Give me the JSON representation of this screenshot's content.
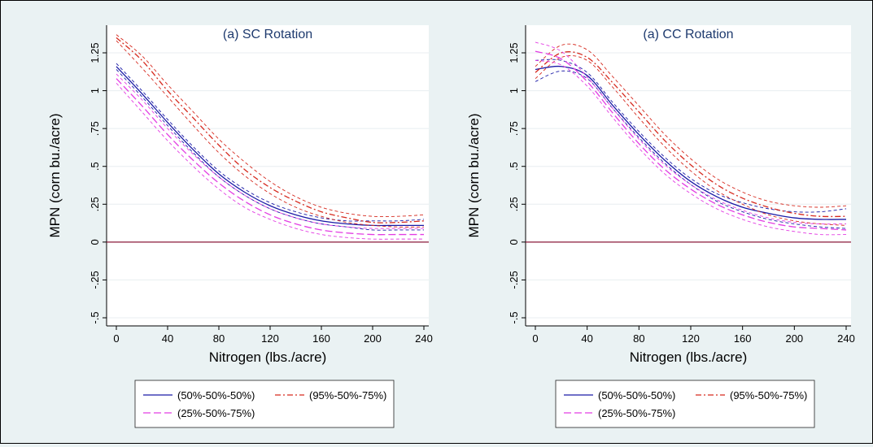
{
  "colors": {
    "background": "#eaf2f3",
    "plot_bg": "#ffffff",
    "grid": "#e8eef0",
    "zero_line": "#8b1a3a",
    "legend_border": "#222222"
  },
  "chart_data": [
    {
      "type": "line",
      "title": "(a) SC Rotation",
      "xlabel": "Nitrogen (lbs./acre)",
      "ylabel": "MPN (corn bu./acre)",
      "xlim": [
        0,
        240
      ],
      "ylim": [
        -0.5,
        1.25
      ],
      "xticks": [
        0,
        40,
        80,
        120,
        160,
        200,
        240
      ],
      "xtick_labels": [
        "0",
        "40",
        "80",
        "120",
        "160",
        "200",
        "240"
      ],
      "yticks": [
        -0.5,
        -0.25,
        0,
        0.25,
        0.5,
        0.75,
        1,
        1.25
      ],
      "ytick_labels": [
        "-.5",
        "-.25",
        "0",
        ".25",
        ".5",
        ".75",
        "1",
        "1.25"
      ],
      "grid": true,
      "reference_line": 0,
      "x": [
        0,
        20,
        40,
        60,
        80,
        100,
        120,
        140,
        160,
        180,
        200,
        220,
        240
      ],
      "series": [
        {
          "name": "(50%-50%-50%)",
          "color": "#1a1aa6",
          "dash": "solid",
          "values": [
            1.16,
            0.98,
            0.79,
            0.61,
            0.45,
            0.33,
            0.24,
            0.18,
            0.14,
            0.12,
            0.11,
            0.11,
            0.11
          ]
        },
        {
          "name": "",
          "color": "#1a1aa6",
          "dash": "dashed",
          "values": [
            1.14,
            0.96,
            0.77,
            0.59,
            0.43,
            0.31,
            0.22,
            0.16,
            0.12,
            0.1,
            0.08,
            0.08,
            0.08
          ]
        },
        {
          "name": "",
          "color": "#1a1aa6",
          "dash": "dashed",
          "values": [
            1.18,
            1.0,
            0.81,
            0.63,
            0.47,
            0.35,
            0.26,
            0.2,
            0.16,
            0.14,
            0.14,
            0.14,
            0.15
          ]
        },
        {
          "name": "(95%-50%-75%)",
          "color": "#d62a1f",
          "dash": "dashdot",
          "values": [
            1.35,
            1.2,
            1.0,
            0.82,
            0.64,
            0.48,
            0.36,
            0.27,
            0.2,
            0.16,
            0.13,
            0.13,
            0.14
          ]
        },
        {
          "name": "",
          "color": "#d62a1f",
          "dash": "dashed",
          "values": [
            1.33,
            1.15,
            0.96,
            0.77,
            0.59,
            0.44,
            0.32,
            0.23,
            0.17,
            0.13,
            0.11,
            0.1,
            0.1
          ]
        },
        {
          "name": "",
          "color": "#d62a1f",
          "dash": "dashed",
          "values": [
            1.37,
            1.23,
            1.04,
            0.86,
            0.68,
            0.53,
            0.4,
            0.3,
            0.23,
            0.19,
            0.17,
            0.17,
            0.18
          ]
        },
        {
          "name": "(25%-50%-75%)",
          "color": "#e33de3",
          "dash": "longdash",
          "values": [
            1.08,
            0.9,
            0.71,
            0.54,
            0.39,
            0.27,
            0.18,
            0.12,
            0.08,
            0.06,
            0.05,
            0.05,
            0.05
          ]
        },
        {
          "name": "",
          "color": "#e33de3",
          "dash": "dashed",
          "values": [
            1.05,
            0.86,
            0.67,
            0.5,
            0.35,
            0.23,
            0.15,
            0.09,
            0.05,
            0.03,
            0.02,
            0.02,
            0.02
          ]
        },
        {
          "name": "",
          "color": "#e33de3",
          "dash": "dashed",
          "values": [
            1.11,
            0.94,
            0.75,
            0.58,
            0.43,
            0.31,
            0.22,
            0.16,
            0.12,
            0.1,
            0.09,
            0.09,
            0.09
          ]
        }
      ],
      "legend": {
        "placement": "bottom",
        "entries": [
          {
            "label": "(50%-50%-50%)",
            "color": "#1a1aa6",
            "dash": "solid"
          },
          {
            "label": "(95%-50%-75%)",
            "color": "#d62a1f",
            "dash": "dashdot"
          },
          {
            "label": "(25%-50%-75%)",
            "color": "#e33de3",
            "dash": "longdash"
          }
        ]
      }
    },
    {
      "type": "line",
      "title": "(a) CC Rotation",
      "xlabel": "Nitrogen (lbs./acre)",
      "ylabel": "MPN (corn bu./acre)",
      "xlim": [
        0,
        240
      ],
      "ylim": [
        -0.5,
        1.25
      ],
      "xticks": [
        0,
        40,
        80,
        120,
        160,
        200,
        240
      ],
      "xtick_labels": [
        "0",
        "40",
        "80",
        "120",
        "160",
        "200",
        "240"
      ],
      "yticks": [
        -0.5,
        -0.25,
        0,
        0.25,
        0.5,
        0.75,
        1,
        1.25
      ],
      "ytick_labels": [
        "-.5",
        "-.25",
        "0",
        ".25",
        ".5",
        ".75",
        "1",
        "1.25"
      ],
      "grid": true,
      "reference_line": 0,
      "x": [
        0,
        20,
        40,
        60,
        80,
        100,
        120,
        140,
        160,
        180,
        200,
        220,
        240
      ],
      "series": [
        {
          "name": "(50%-50%-50%)",
          "color": "#1a1aa6",
          "dash": "solid",
          "values": [
            1.14,
            1.16,
            1.1,
            0.9,
            0.71,
            0.54,
            0.4,
            0.3,
            0.23,
            0.19,
            0.16,
            0.15,
            0.15
          ]
        },
        {
          "name": "",
          "color": "#1a1aa6",
          "dash": "dashed",
          "values": [
            1.06,
            1.13,
            1.08,
            0.88,
            0.69,
            0.52,
            0.38,
            0.27,
            0.2,
            0.15,
            0.12,
            0.1,
            0.09
          ]
        },
        {
          "name": "",
          "color": "#1a1aa6",
          "dash": "dashed",
          "values": [
            1.2,
            1.2,
            1.12,
            0.92,
            0.73,
            0.56,
            0.42,
            0.32,
            0.26,
            0.22,
            0.2,
            0.2,
            0.22
          ]
        },
        {
          "name": "(95%-50%-75%)",
          "color": "#d62a1f",
          "dash": "dashdot",
          "values": [
            1.12,
            1.25,
            1.22,
            1.05,
            0.86,
            0.67,
            0.51,
            0.38,
            0.29,
            0.23,
            0.19,
            0.17,
            0.17
          ]
        },
        {
          "name": "",
          "color": "#d62a1f",
          "dash": "dashed",
          "values": [
            1.08,
            1.22,
            1.2,
            1.02,
            0.82,
            0.63,
            0.47,
            0.34,
            0.25,
            0.18,
            0.14,
            0.12,
            0.11
          ]
        },
        {
          "name": "",
          "color": "#d62a1f",
          "dash": "dashed",
          "values": [
            1.16,
            1.3,
            1.27,
            1.09,
            0.9,
            0.71,
            0.55,
            0.42,
            0.33,
            0.27,
            0.24,
            0.23,
            0.24
          ]
        },
        {
          "name": "(25%-50%-75%)",
          "color": "#e33de3",
          "dash": "longdash",
          "values": [
            1.26,
            1.21,
            1.06,
            0.85,
            0.65,
            0.48,
            0.35,
            0.25,
            0.18,
            0.13,
            0.1,
            0.09,
            0.08
          ]
        },
        {
          "name": "",
          "color": "#e33de3",
          "dash": "dashed",
          "values": [
            1.2,
            1.17,
            1.03,
            0.82,
            0.62,
            0.45,
            0.32,
            0.22,
            0.15,
            0.1,
            0.07,
            0.05,
            0.05
          ]
        },
        {
          "name": "",
          "color": "#e33de3",
          "dash": "dashed",
          "values": [
            1.32,
            1.26,
            1.09,
            0.88,
            0.68,
            0.51,
            0.38,
            0.28,
            0.21,
            0.16,
            0.13,
            0.12,
            0.12
          ]
        }
      ],
      "legend": {
        "placement": "bottom",
        "entries": [
          {
            "label": "(50%-50%-50%)",
            "color": "#1a1aa6",
            "dash": "solid"
          },
          {
            "label": "(95%-50%-75%)",
            "color": "#d62a1f",
            "dash": "dashdot"
          },
          {
            "label": "(25%-50%-75%)",
            "color": "#e33de3",
            "dash": "longdash"
          }
        ]
      }
    }
  ]
}
